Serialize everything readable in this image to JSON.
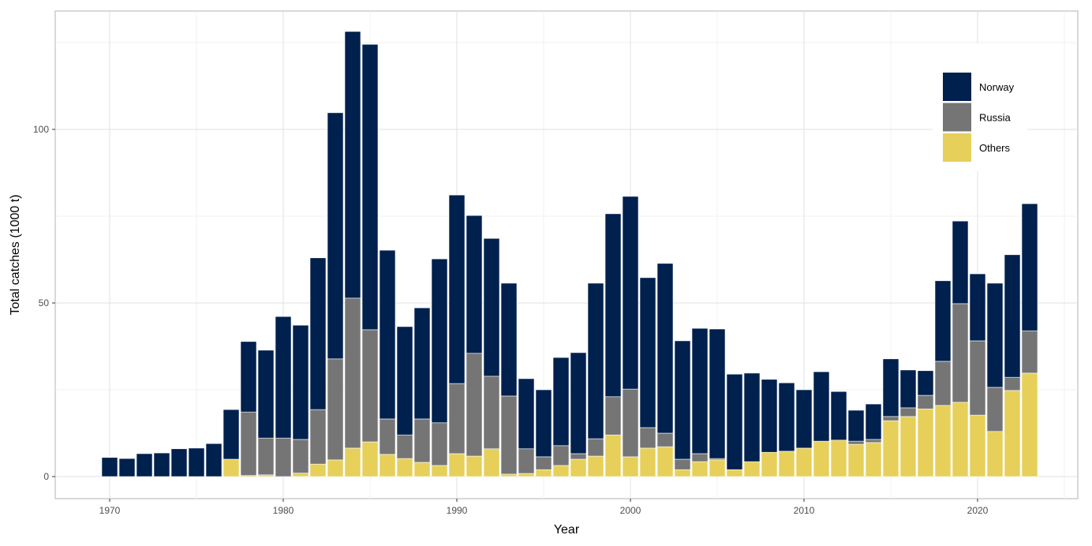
{
  "chart_data": {
    "type": "bar",
    "stacked": true,
    "title": "",
    "xlabel": "Year",
    "ylabel": "Total catches (1000 t)",
    "ylim": [
      0,
      130
    ],
    "xlim": [
      1969,
      2024
    ],
    "x_ticks": [
      1970,
      1980,
      1990,
      2000,
      2010,
      2020
    ],
    "y_ticks": [
      0,
      50,
      100
    ],
    "grid": true,
    "legend_position": "top-right",
    "colors": {
      "Norway": "#00204d",
      "Russia": "#757575",
      "Others": "#e6d05a"
    },
    "x": [
      1970,
      1971,
      1972,
      1973,
      1974,
      1975,
      1976,
      1977,
      1978,
      1979,
      1980,
      1981,
      1982,
      1983,
      1984,
      1985,
      1986,
      1987,
      1988,
      1989,
      1990,
      1991,
      1992,
      1993,
      1994,
      1995,
      1996,
      1997,
      1998,
      1999,
      2000,
      2001,
      2002,
      2003,
      2004,
      2005,
      2006,
      2007,
      2008,
      2009,
      2010,
      2011,
      2012,
      2013,
      2014,
      2015,
      2016,
      2017,
      2018,
      2019,
      2020,
      2021,
      2022,
      2023
    ],
    "series": [
      {
        "name": "Norway",
        "values": [
          5.5,
          5.2,
          6.6,
          6.8,
          8.0,
          8.2,
          9.5,
          14.3,
          20.3,
          25.3,
          35.0,
          32.9,
          43.7,
          70.9,
          76.8,
          82.2,
          48.6,
          31.2,
          32.0,
          47.2,
          54.3,
          39.7,
          39.7,
          32.5,
          20.2,
          19.3,
          25.4,
          29.1,
          44.8,
          52.7,
          55.5,
          43.2,
          48.9,
          34.1,
          36.1,
          37.3,
          27.5,
          25.5,
          21.0,
          19.7,
          16.8,
          20.0,
          14.0,
          8.9,
          10.2,
          16.6,
          10.9,
          7.1,
          23.2,
          23.8,
          19.3,
          30.0,
          35.3,
          36.6
        ]
      },
      {
        "name": "Russia",
        "values": [
          0,
          0,
          0,
          0,
          0,
          0,
          0,
          0,
          18.3,
          10.6,
          11.1,
          9.7,
          15.7,
          29.1,
          43.2,
          32.3,
          10.2,
          6.8,
          12.5,
          12.3,
          20.2,
          29.6,
          20.9,
          22.5,
          7.1,
          3.7,
          5.7,
          1.6,
          5.0,
          11.0,
          19.5,
          5.9,
          3.9,
          3.0,
          2.3,
          0.4,
          0,
          0,
          0,
          0,
          0,
          0,
          0,
          0.9,
          0.9,
          1.2,
          2.5,
          3.9,
          12.7,
          28.4,
          21.4,
          12.7,
          3.8,
          12.2
        ]
      },
      {
        "name": "Others",
        "values": [
          0,
          0,
          0,
          0,
          0,
          0,
          0,
          5.0,
          0.3,
          0.5,
          0,
          1.0,
          3.6,
          4.8,
          8.2,
          10.0,
          6.4,
          5.2,
          4.1,
          3.2,
          6.6,
          5.9,
          8.0,
          0.7,
          0.9,
          2.0,
          3.2,
          5.0,
          5.9,
          12.0,
          5.7,
          8.2,
          8.6,
          2.0,
          4.3,
          4.8,
          2.0,
          4.3,
          7.0,
          7.3,
          8.2,
          10.2,
          10.5,
          9.3,
          9.8,
          16.1,
          17.3,
          19.5,
          20.5,
          21.4,
          17.7,
          13.0,
          24.8,
          29.8
        ]
      }
    ],
    "legend": [
      "Norway",
      "Russia",
      "Others"
    ]
  }
}
